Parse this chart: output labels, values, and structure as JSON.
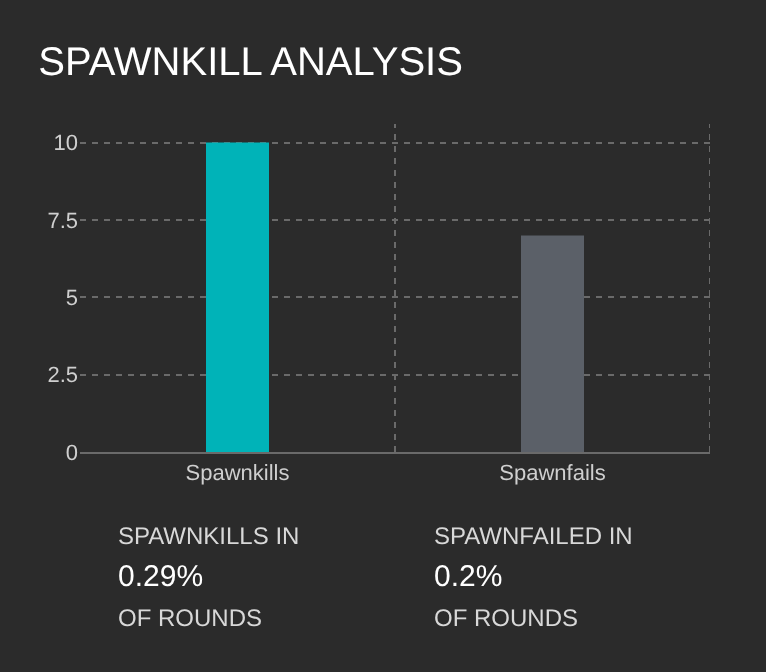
{
  "chart_data": {
    "type": "bar",
    "title": "SPAWNKILL ANALYSIS",
    "categories": [
      "Spawnkills",
      "Spawnfails"
    ],
    "values": [
      10,
      7
    ],
    "colors": [
      "#00b3b8",
      "#5b6068"
    ],
    "ylim": [
      0,
      10.6
    ],
    "yticks": [
      0,
      2.5,
      5,
      7.5,
      10
    ],
    "grid": true,
    "annotations": [
      "SPAWNKILLS IN",
      "0.29%",
      "OF ROUNDS",
      "SPAWNFAILED IN",
      "0.2%",
      "OF ROUNDS"
    ]
  }
}
